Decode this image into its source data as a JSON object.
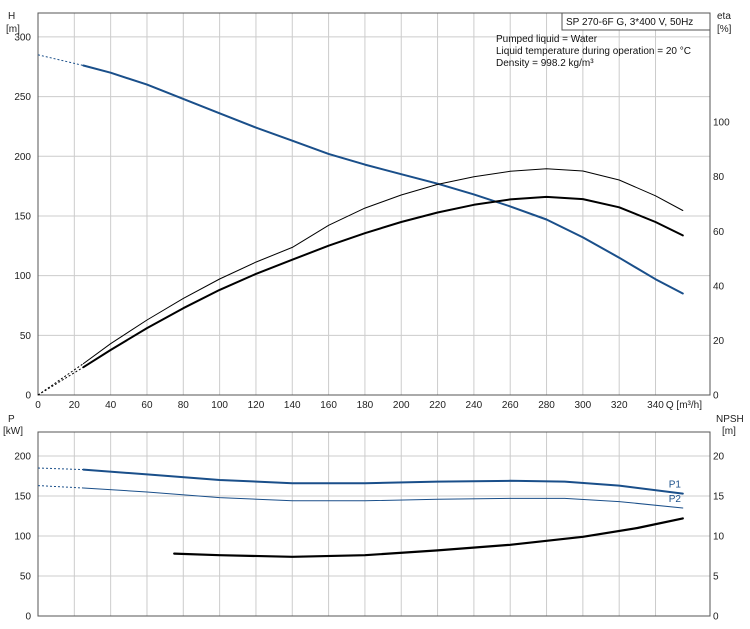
{
  "chart_data": [
    {
      "type": "line",
      "panel": "head-efficiency",
      "title": "SP 270-6F G, 3*400 V, 50Hz",
      "annotations": [
        "Pumped liquid = Water",
        "Liquid temperature during operation = 20 °C",
        "Density = 998.2 kg/m³"
      ],
      "xlabel": "Q [m³/h]",
      "xlim": [
        0,
        370
      ],
      "x_ticks": [
        0,
        20,
        40,
        60,
        80,
        100,
        120,
        140,
        160,
        180,
        200,
        220,
        240,
        260,
        280,
        300,
        320,
        340
      ],
      "ylabel_left": [
        "H",
        "[m]"
      ],
      "ylim_left": [
        0,
        320
      ],
      "y_ticks_left": [
        0,
        50,
        100,
        150,
        200,
        250,
        300
      ],
      "ylabel_right": [
        "eta",
        "[%]"
      ],
      "ylim_right": [
        0,
        140
      ],
      "y_ticks_right": [
        0,
        20,
        40,
        60,
        80,
        100
      ],
      "grid": true,
      "series": [
        {
          "color": "#1a4f8a",
          "axis": "left",
          "width": 2,
          "x": [
            25,
            40,
            60,
            80,
            100,
            120,
            140,
            160,
            180,
            200,
            220,
            240,
            260,
            280,
            300,
            320,
            340,
            355
          ],
          "y": [
            276,
            270,
            260,
            248,
            236,
            224,
            213,
            202,
            193,
            185,
            177,
            168,
            158,
            147,
            132,
            115,
            97,
            85
          ],
          "dashed_extension": {
            "x": [
              0,
              25
            ],
            "y": [
              285,
              276
            ]
          }
        },
        {
          "color": "#000000",
          "axis": "right",
          "width": 1,
          "x": [
            25,
            40,
            60,
            80,
            100,
            120,
            140,
            160,
            180,
            200,
            220,
            240,
            260,
            280,
            300,
            320,
            340,
            355
          ],
          "y": [
            11.5,
            18.8,
            27.5,
            35.4,
            42.5,
            48.7,
            54.1,
            62.2,
            68.5,
            73.3,
            77.2,
            80.0,
            82.0,
            82.9,
            82.1,
            78.8,
            73.0,
            67.6
          ],
          "dashed_extension": {
            "x": [
              0,
              25
            ],
            "y": [
              0,
              11.5
            ]
          }
        },
        {
          "color": "#000000",
          "axis": "right",
          "width": 2,
          "x": [
            25,
            40,
            60,
            80,
            100,
            120,
            140,
            160,
            180,
            200,
            220,
            240,
            260,
            280,
            300,
            320,
            340,
            355
          ],
          "y": [
            10.2,
            16.5,
            24.5,
            31.8,
            38.5,
            44.4,
            49.6,
            54.7,
            59.3,
            63.4,
            66.9,
            69.7,
            71.7,
            72.6,
            71.8,
            68.8,
            63.4,
            58.5
          ],
          "dashed_extension": {
            "x": [
              0,
              25
            ],
            "y": [
              0,
              10.2
            ]
          }
        }
      ]
    },
    {
      "type": "line",
      "panel": "power-npsh",
      "xlim": [
        0,
        370
      ],
      "ylabel_left": [
        "P",
        "[kW]"
      ],
      "ylim_left": [
        0,
        230
      ],
      "y_ticks_left": [
        0,
        50,
        100,
        150,
        200
      ],
      "ylabel_right": [
        "NPSH",
        "[m]"
      ],
      "ylim_right": [
        0,
        23
      ],
      "y_ticks_right": [
        0,
        5,
        10,
        15,
        20
      ],
      "grid": true,
      "series": [
        {
          "name": "P1",
          "color": "#1a4f8a",
          "axis": "left",
          "width": 2,
          "x": [
            25,
            60,
            100,
            140,
            180,
            220,
            260,
            290,
            320,
            355
          ],
          "y": [
            183,
            177,
            170,
            166,
            166,
            168,
            169,
            168,
            163,
            153
          ],
          "dashed_extension": {
            "x": [
              0,
              25
            ],
            "y": [
              185,
              183
            ]
          }
        },
        {
          "name": "P2",
          "color": "#1a4f8a",
          "axis": "left",
          "width": 1,
          "x": [
            25,
            60,
            100,
            140,
            180,
            220,
            260,
            290,
            320,
            355
          ],
          "y": [
            160,
            155,
            148,
            144,
            144,
            146,
            147,
            147,
            143,
            135
          ],
          "dashed_extension": {
            "x": [
              0,
              25
            ],
            "y": [
              163,
              160
            ]
          }
        },
        {
          "color": "#000000",
          "axis": "right",
          "width": 2.2,
          "x": [
            75,
            100,
            140,
            180,
            220,
            260,
            300,
            330,
            355
          ],
          "y": [
            7.8,
            7.6,
            7.4,
            7.6,
            8.2,
            8.9,
            9.9,
            11.0,
            12.2
          ]
        }
      ]
    }
  ]
}
